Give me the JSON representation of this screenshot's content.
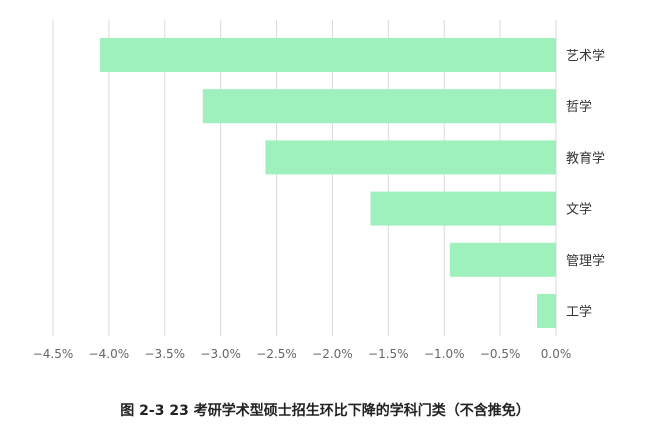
{
  "chart_data": {
    "type": "bar",
    "orientation": "horizontal",
    "title": "图 2-3 23 考研学术型硕士招生环比下降的学科门类（不含推免）",
    "categories": [
      "艺术学",
      "哲学",
      "教育学",
      "文学",
      "管理学",
      "工学"
    ],
    "values": [
      -4.08,
      -3.16,
      -2.6,
      -1.66,
      -0.95,
      -0.17
    ],
    "xlim": [
      -4.5,
      0.0
    ],
    "xticks": [
      -4.5,
      -4.0,
      -3.5,
      -3.0,
      -2.5,
      -2.0,
      -1.5,
      -1.0,
      -0.5,
      0.0
    ],
    "xtick_labels": [
      "−4.5%",
      "−4.0%",
      "−3.5%",
      "−3.0%",
      "−2.5%",
      "−2.0%",
      "−1.5%",
      "−1.0%",
      "−0.5%",
      "0.0%"
    ],
    "grid": "vertical",
    "bar_color": "#9ef0bc",
    "grid_color": "#d9d9d9"
  }
}
